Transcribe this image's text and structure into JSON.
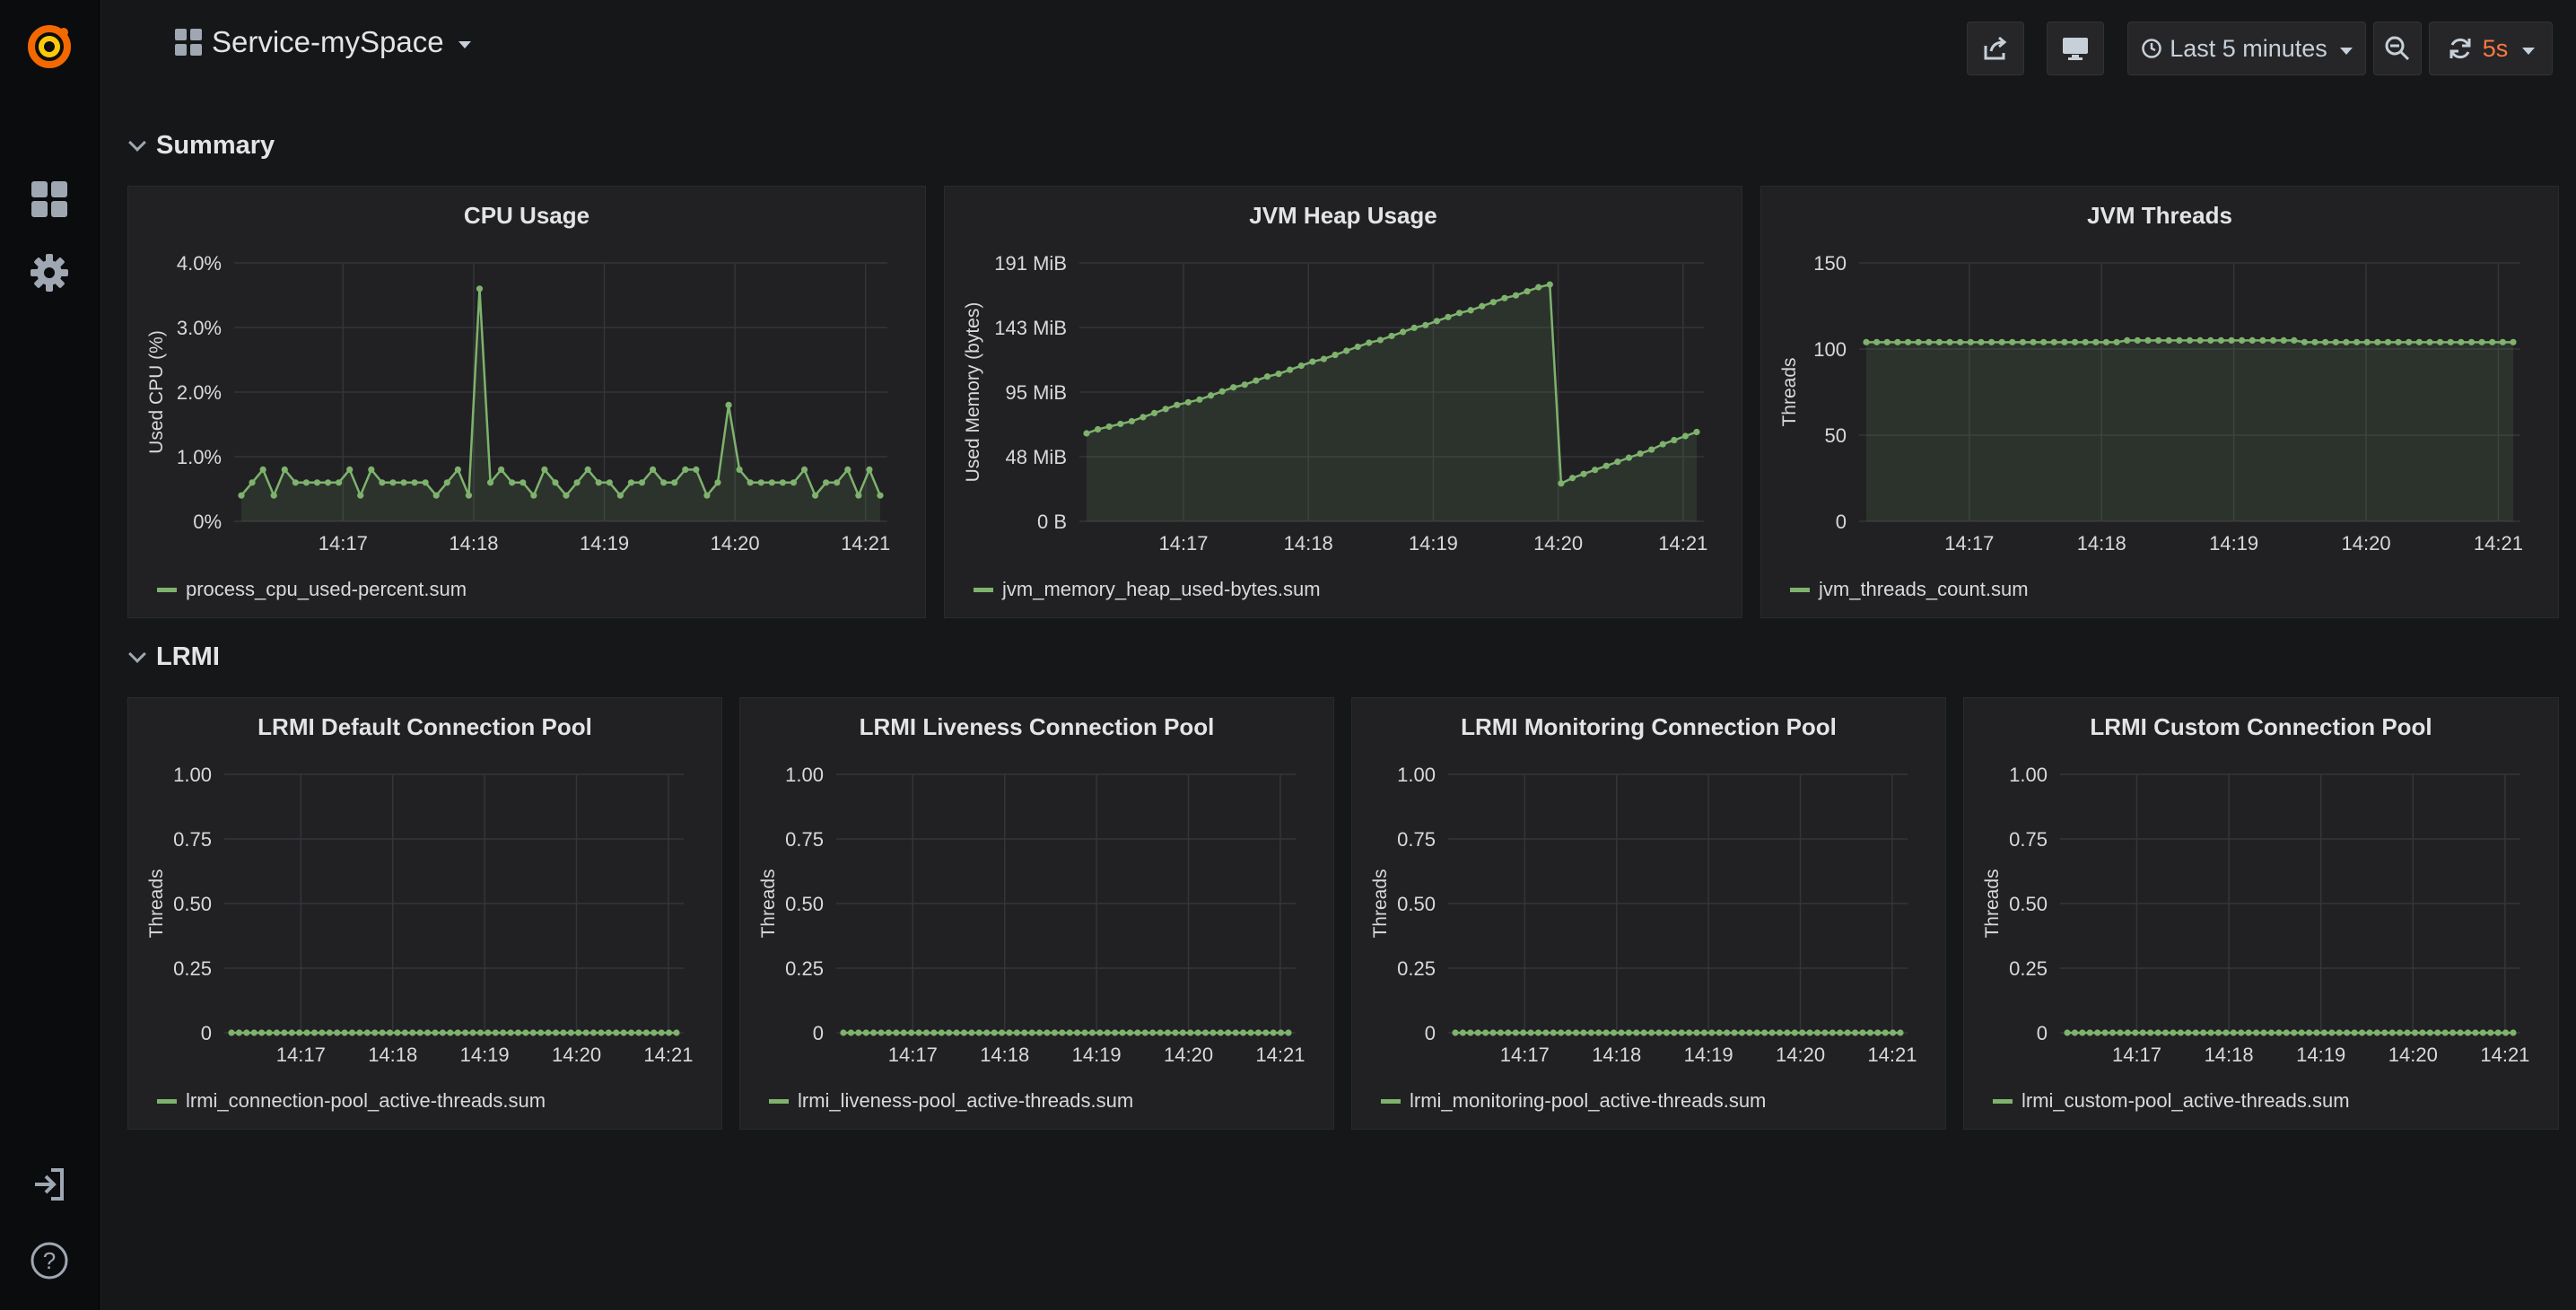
{
  "dashboard": {
    "title": "Service-mySpace"
  },
  "toolbar": {
    "time_range": "Last 5 minutes",
    "refresh_interval": "5s",
    "share_icon": "share-icon",
    "tv_icon": "tv-icon",
    "zoom_icon": "zoom-out-icon",
    "refresh_icon": "refresh-icon"
  },
  "rows": [
    {
      "title": "Summary"
    },
    {
      "title": "LRMI"
    }
  ],
  "colors": {
    "series": "#7eb26d",
    "accent": "#eb7b18",
    "refresh": "#ff7941"
  },
  "panels": [
    {
      "title": "CPU Usage",
      "legend": "process_cpu_used-percent.sum",
      "chart_data": {
        "type": "line",
        "ylabel": "Used CPU (%)",
        "x_ticks": [
          "14:17",
          "14:18",
          "14:19",
          "14:20",
          "14:21"
        ],
        "y_ticks": [
          "0%",
          "1.0%",
          "2.0%",
          "3.0%",
          "4.0%"
        ],
        "ylim": [
          0,
          4
        ],
        "x_start": "14:16:10",
        "x_end": "14:21:10",
        "series": [
          {
            "name": "process_cpu_used-percent.sum",
            "values": [
              0.4,
              0.6,
              0.8,
              0.4,
              0.8,
              0.6,
              0.6,
              0.6,
              0.6,
              0.6,
              0.8,
              0.4,
              0.8,
              0.6,
              0.6,
              0.6,
              0.6,
              0.6,
              0.4,
              0.6,
              0.8,
              0.4,
              3.6,
              0.6,
              0.8,
              0.6,
              0.6,
              0.4,
              0.8,
              0.6,
              0.4,
              0.6,
              0.8,
              0.6,
              0.6,
              0.4,
              0.6,
              0.6,
              0.8,
              0.6,
              0.6,
              0.8,
              0.8,
              0.4,
              0.6,
              1.8,
              0.8,
              0.6,
              0.6,
              0.6,
              0.6,
              0.6,
              0.8,
              0.4,
              0.6,
              0.6,
              0.8,
              0.4,
              0.8,
              0.4
            ]
          }
        ]
      }
    },
    {
      "title": "JVM Heap Usage",
      "legend": "jvm_memory_heap_used-bytes.sum",
      "chart_data": {
        "type": "line",
        "ylabel": "Used Memory (bytes)",
        "x_ticks": [
          "14:17",
          "14:18",
          "14:19",
          "14:20",
          "14:21"
        ],
        "y_ticks": [
          "0 B",
          "48 MiB",
          "95 MiB",
          "143 MiB",
          "191 MiB"
        ],
        "ylim": [
          0,
          191
        ],
        "x_start": "14:16:10",
        "x_end": "14:21:10",
        "series": [
          {
            "name": "jvm_memory_heap_used-bytes.sum",
            "values": [
              65,
              68,
              70,
              72,
              74,
              77,
              80,
              83,
              86,
              88,
              90,
              93,
              96,
              99,
              101,
              104,
              107,
              109,
              112,
              115,
              118,
              120,
              123,
              126,
              129,
              132,
              134,
              137,
              140,
              143,
              145,
              148,
              151,
              154,
              156,
              159,
              162,
              165,
              167,
              170,
              173,
              175,
              28,
              32,
              35,
              38,
              41,
              44,
              47,
              50,
              53,
              57,
              60,
              63,
              66
            ]
          }
        ]
      }
    },
    {
      "title": "JVM Threads",
      "legend": "jvm_threads_count.sum",
      "chart_data": {
        "type": "line",
        "ylabel": "Threads",
        "x_ticks": [
          "14:17",
          "14:18",
          "14:19",
          "14:20",
          "14:21"
        ],
        "y_ticks": [
          "0",
          "50",
          "100",
          "150"
        ],
        "ylim": [
          0,
          150
        ],
        "x_start": "14:16:10",
        "x_end": "14:21:10",
        "series": [
          {
            "name": "jvm_threads_count.sum",
            "values": [
              104,
              104,
              104,
              104,
              104,
              104,
              104,
              104,
              104,
              104,
              104,
              104,
              104,
              104,
              104,
              104,
              104,
              104,
              104,
              104,
              104,
              104,
              104,
              104,
              104,
              105,
              105,
              105,
              105,
              105,
              105,
              105,
              105,
              105,
              105,
              105,
              105,
              105,
              105,
              105,
              105,
              105,
              104,
              104,
              104,
              104,
              104,
              104,
              104,
              104,
              104,
              104,
              104,
              104,
              104,
              104,
              104,
              104,
              104,
              104,
              104,
              104,
              104
            ]
          }
        ]
      }
    },
    {
      "title": "LRMI Default Connection Pool",
      "legend": "lrmi_connection-pool_active-threads.sum",
      "chart_data": {
        "type": "line",
        "ylabel": "Threads",
        "x_ticks": [
          "14:17",
          "14:18",
          "14:19",
          "14:20",
          "14:21"
        ],
        "y_ticks": [
          "0",
          "0.25",
          "0.50",
          "0.75",
          "1.00"
        ],
        "ylim": [
          0,
          1
        ],
        "x_start": "14:16:10",
        "x_end": "14:21:10",
        "series": [
          {
            "name": "lrmi_connection-pool_active-threads.sum",
            "values": [
              0,
              0,
              0,
              0,
              0,
              0,
              0,
              0,
              0,
              0,
              0,
              0,
              0,
              0,
              0,
              0,
              0,
              0,
              0,
              0,
              0,
              0,
              0,
              0,
              0,
              0,
              0,
              0,
              0,
              0,
              0,
              0,
              0,
              0,
              0,
              0,
              0,
              0,
              0,
              0,
              0,
              0,
              0,
              0,
              0,
              0,
              0,
              0,
              0,
              0,
              0,
              0,
              0,
              0,
              0,
              0,
              0,
              0,
              0,
              0
            ]
          }
        ]
      }
    },
    {
      "title": "LRMI Liveness Connection Pool",
      "legend": "lrmi_liveness-pool_active-threads.sum",
      "chart_data": {
        "type": "line",
        "ylabel": "Threads",
        "x_ticks": [
          "14:17",
          "14:18",
          "14:19",
          "14:20",
          "14:21"
        ],
        "y_ticks": [
          "0",
          "0.25",
          "0.50",
          "0.75",
          "1.00"
        ],
        "ylim": [
          0,
          1
        ],
        "x_start": "14:16:10",
        "x_end": "14:21:10",
        "series": [
          {
            "name": "lrmi_liveness-pool_active-threads.sum",
            "values": [
              0,
              0,
              0,
              0,
              0,
              0,
              0,
              0,
              0,
              0,
              0,
              0,
              0,
              0,
              0,
              0,
              0,
              0,
              0,
              0,
              0,
              0,
              0,
              0,
              0,
              0,
              0,
              0,
              0,
              0,
              0,
              0,
              0,
              0,
              0,
              0,
              0,
              0,
              0,
              0,
              0,
              0,
              0,
              0,
              0,
              0,
              0,
              0,
              0,
              0,
              0,
              0,
              0,
              0,
              0,
              0,
              0,
              0,
              0,
              0
            ]
          }
        ]
      }
    },
    {
      "title": "LRMI Monitoring Connection Pool",
      "legend": "lrmi_monitoring-pool_active-threads.sum",
      "chart_data": {
        "type": "line",
        "ylabel": "Threads",
        "x_ticks": [
          "14:17",
          "14:18",
          "14:19",
          "14:20",
          "14:21"
        ],
        "y_ticks": [
          "0",
          "0.25",
          "0.50",
          "0.75",
          "1.00"
        ],
        "ylim": [
          0,
          1
        ],
        "x_start": "14:16:10",
        "x_end": "14:21:10",
        "series": [
          {
            "name": "lrmi_monitoring-pool_active-threads.sum",
            "values": [
              0,
              0,
              0,
              0,
              0,
              0,
              0,
              0,
              0,
              0,
              0,
              0,
              0,
              0,
              0,
              0,
              0,
              0,
              0,
              0,
              0,
              0,
              0,
              0,
              0,
              0,
              0,
              0,
              0,
              0,
              0,
              0,
              0,
              0,
              0,
              0,
              0,
              0,
              0,
              0,
              0,
              0,
              0,
              0,
              0,
              0,
              0,
              0,
              0,
              0,
              0,
              0,
              0,
              0,
              0,
              0,
              0,
              0,
              0,
              0
            ]
          }
        ]
      }
    },
    {
      "title": "LRMI Custom Connection Pool",
      "legend": "lrmi_custom-pool_active-threads.sum",
      "chart_data": {
        "type": "line",
        "ylabel": "Threads",
        "x_ticks": [
          "14:17",
          "14:18",
          "14:19",
          "14:20",
          "14:21"
        ],
        "y_ticks": [
          "0",
          "0.25",
          "0.50",
          "0.75",
          "1.00"
        ],
        "ylim": [
          0,
          1
        ],
        "x_start": "14:16:10",
        "x_end": "14:21:10",
        "series": [
          {
            "name": "lrmi_custom-pool_active-threads.sum",
            "values": [
              0,
              0,
              0,
              0,
              0,
              0,
              0,
              0,
              0,
              0,
              0,
              0,
              0,
              0,
              0,
              0,
              0,
              0,
              0,
              0,
              0,
              0,
              0,
              0,
              0,
              0,
              0,
              0,
              0,
              0,
              0,
              0,
              0,
              0,
              0,
              0,
              0,
              0,
              0,
              0,
              0,
              0,
              0,
              0,
              0,
              0,
              0,
              0,
              0,
              0,
              0,
              0,
              0,
              0,
              0,
              0,
              0,
              0,
              0,
              0
            ]
          }
        ]
      }
    }
  ]
}
